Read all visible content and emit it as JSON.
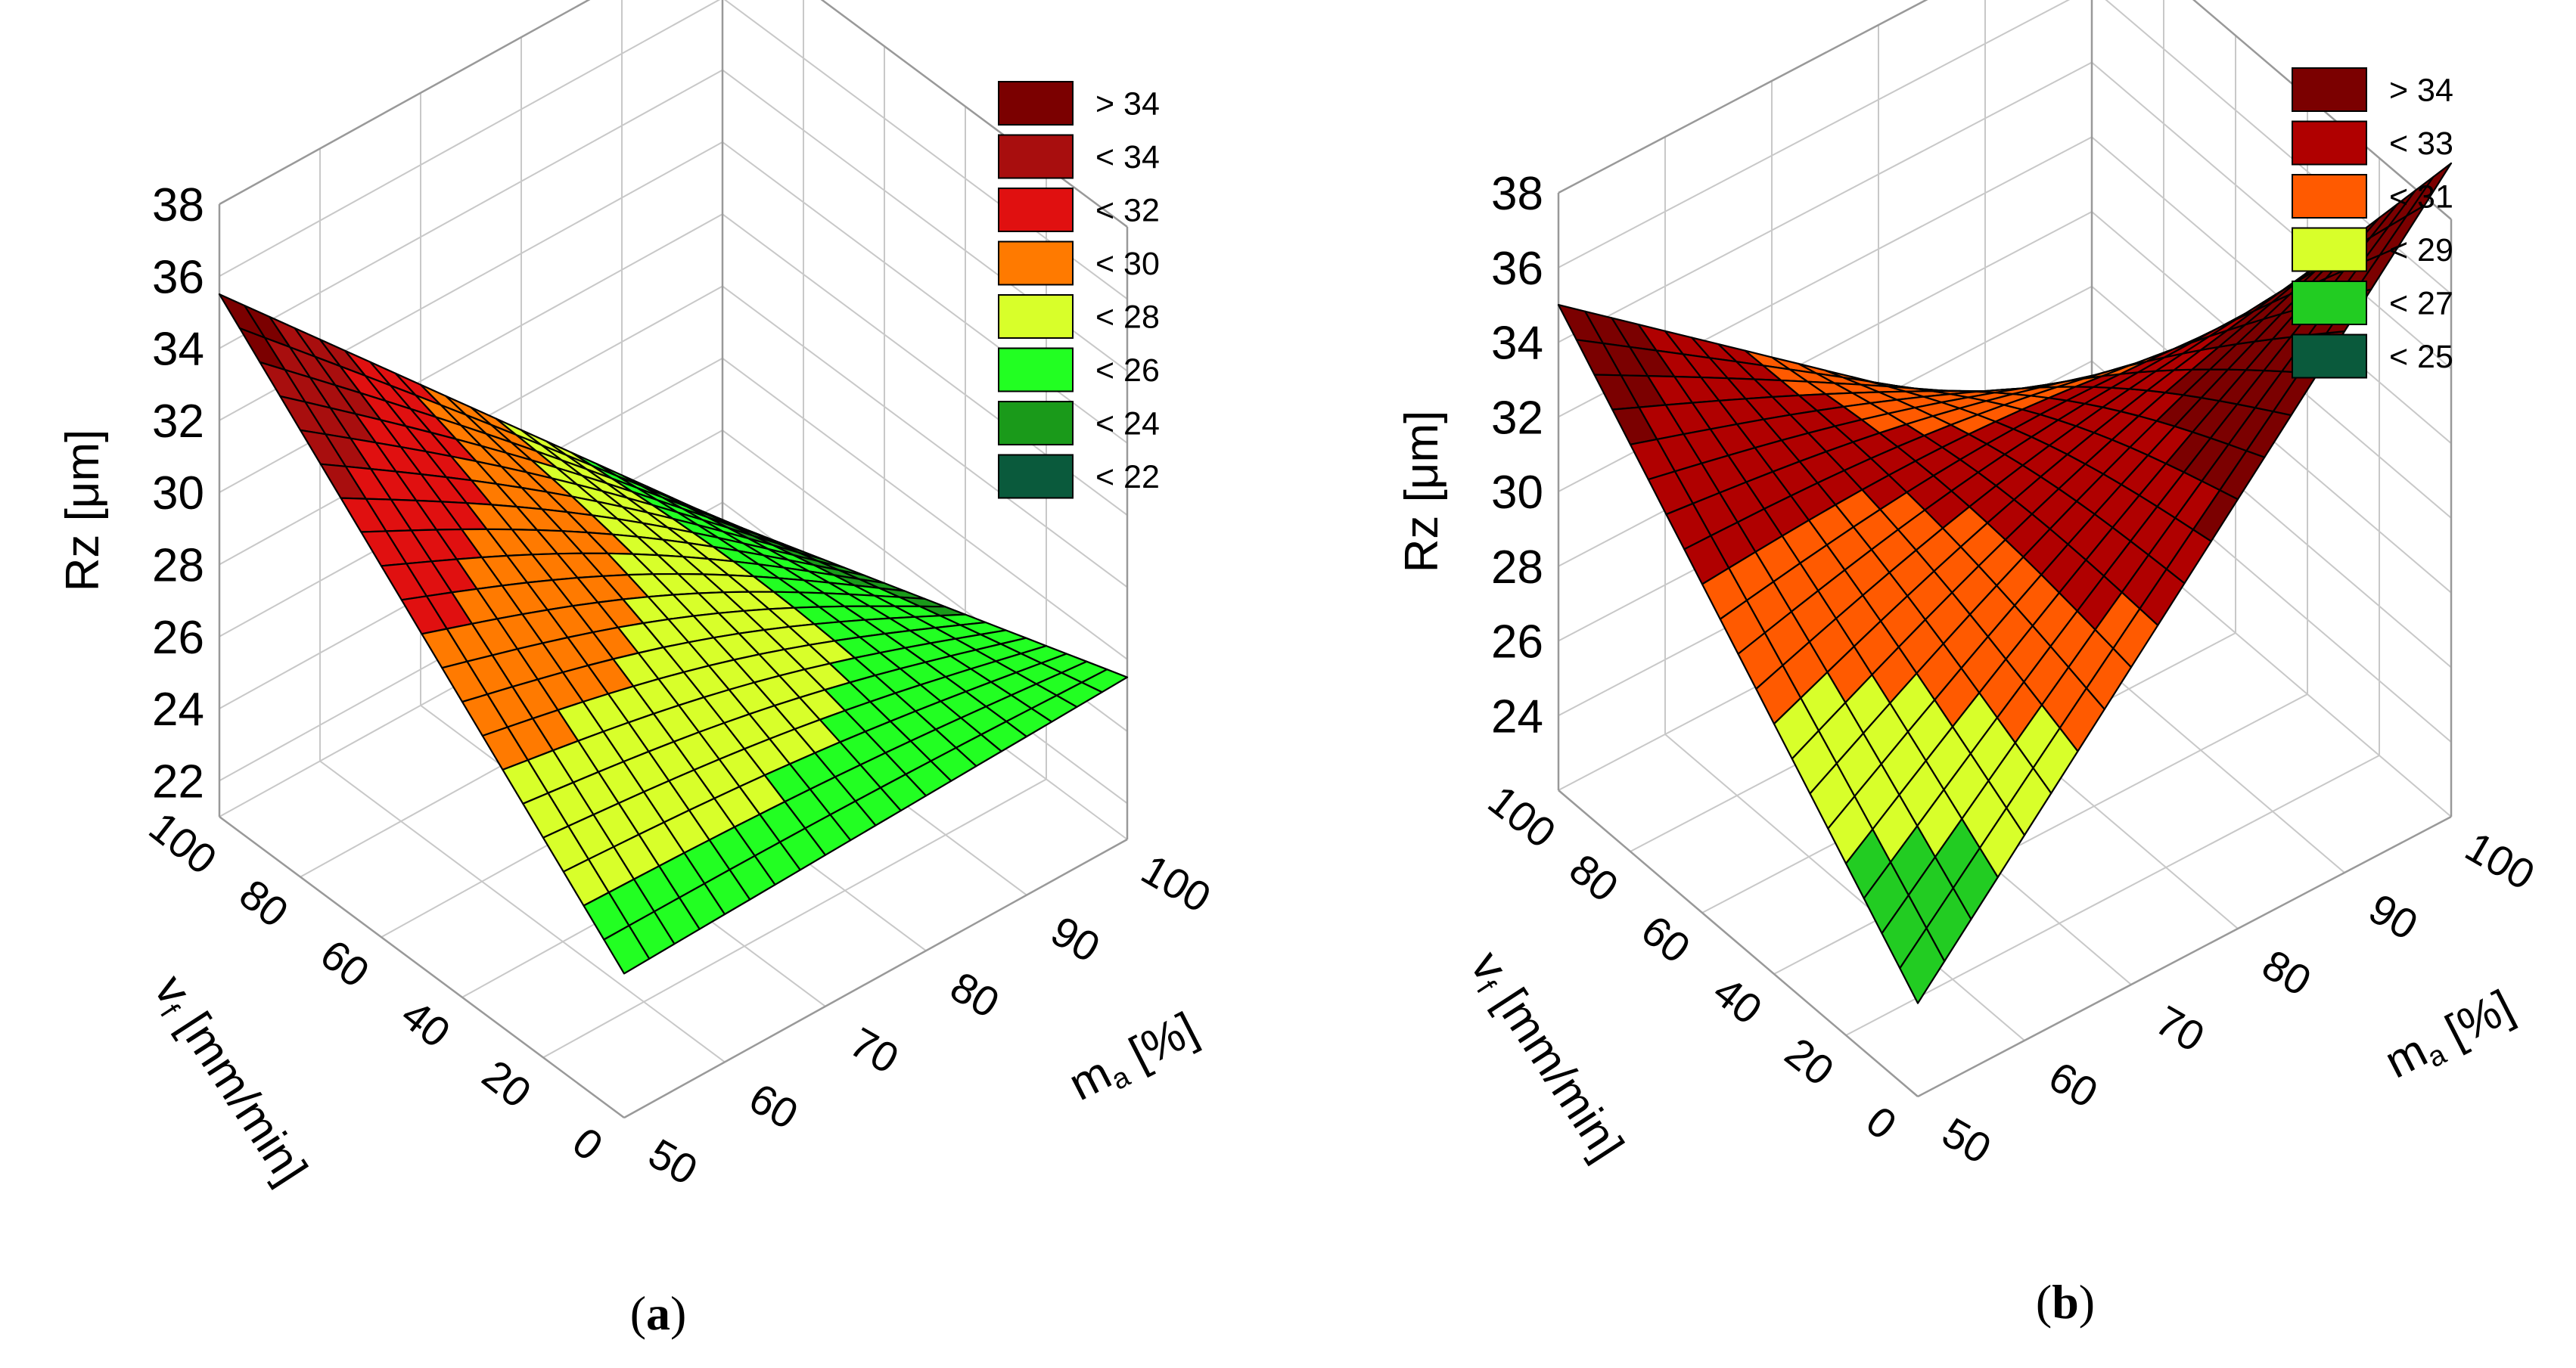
{
  "chart_data": [
    {
      "type": "surface3d",
      "panel_label": "a",
      "xlabel_main": "m",
      "xlabel_sub": "a",
      "xlabel_unit": " [%]",
      "ylabel_main": "v",
      "ylabel_sub": "f",
      "ylabel_unit": " [mm/min]",
      "zlabel": "Rz [μm]",
      "x_ticks": [
        "50",
        "60",
        "70",
        "80",
        "90",
        "100"
      ],
      "y_ticks": [
        "0",
        "20",
        "40",
        "60",
        "80",
        "100"
      ],
      "z_ticks": [
        "22",
        "24",
        "26",
        "28",
        "30",
        "32",
        "34",
        "36",
        "38"
      ],
      "xlim": [
        50,
        100
      ],
      "ylim": [
        0,
        100
      ],
      "zlim": [
        21,
        38
      ],
      "surface_corners": {
        "x50_y0": 25,
        "x100_y0": 25.5,
        "x50_y100": 35.5,
        "x100_y100": 21.5
      },
      "legend": [
        {
          "label": "> 34",
          "color": "#7b0000"
        },
        {
          "label": "< 34",
          "color": "#a80e0e"
        },
        {
          "label": "< 32",
          "color": "#e01010"
        },
        {
          "label": "< 30",
          "color": "#ff7a00"
        },
        {
          "label": "< 28",
          "color": "#d8ff2a"
        },
        {
          "label": "< 26",
          "color": "#22ff22"
        },
        {
          "label": "< 24",
          "color": "#1a9a1a"
        },
        {
          "label": "< 22",
          "color": "#0a5a3c"
        }
      ],
      "thresholds": [
        22,
        24,
        26,
        28,
        30,
        32,
        34
      ]
    },
    {
      "type": "surface3d",
      "panel_label": "b",
      "xlabel_main": "m",
      "xlabel_sub": "a",
      "xlabel_unit": " [%]",
      "ylabel_main": "v",
      "ylabel_sub": "f",
      "ylabel_unit": " [mm/min]",
      "zlabel": "Rz [μm]",
      "x_ticks": [
        "50",
        "60",
        "70",
        "80",
        "90",
        "100"
      ],
      "y_ticks": [
        "0",
        "20",
        "40",
        "60",
        "80",
        "100"
      ],
      "z_ticks": [
        "24",
        "26",
        "28",
        "30",
        "32",
        "34",
        "36",
        "38"
      ],
      "xlim": [
        50,
        100
      ],
      "ylim": [
        0,
        100
      ],
      "zlim": [
        22,
        38
      ],
      "surface_corners": {
        "x50_y0": 24.5,
        "x100_y0": 39.5,
        "x50_y100": 35,
        "x100_y100": 24
      },
      "legend": [
        {
          "label": "> 34",
          "color": "#7b0000"
        },
        {
          "label": "< 33",
          "color": "#b00000"
        },
        {
          "label": "< 31",
          "color": "#ff5a00"
        },
        {
          "label": "< 29",
          "color": "#d8ff2a"
        },
        {
          "label": "< 27",
          "color": "#22cc22"
        },
        {
          "label": "< 25",
          "color": "#0a5a3c"
        }
      ],
      "thresholds": [
        25,
        27,
        29,
        31,
        33,
        34
      ]
    }
  ]
}
